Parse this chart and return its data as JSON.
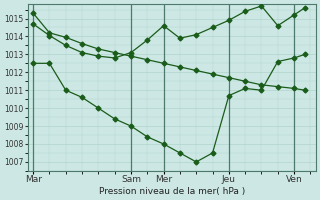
{
  "background_color": "#cde8e4",
  "grid_color": "#b0d4cc",
  "line_color": "#1a5c1a",
  "marker_color": "#1a5c1a",
  "xlabel": "Pression niveau de la mer( hPa )",
  "ylim": [
    1006.5,
    1015.8
  ],
  "yticks": [
    1007,
    1008,
    1009,
    1010,
    1011,
    1012,
    1013,
    1014,
    1015
  ],
  "xtick_labels": [
    "Mar",
    "Sam",
    "Mer",
    "Jeu",
    "Ven"
  ],
  "xtick_positions": [
    0,
    18,
    24,
    36,
    48
  ],
  "xlim": [
    -1,
    52
  ],
  "vlines": [
    0,
    18,
    24,
    36,
    48
  ],
  "line1_x": [
    0,
    3,
    6,
    9,
    12,
    15,
    18,
    21,
    24,
    27,
    30,
    33,
    36,
    39,
    42,
    45,
    48,
    50
  ],
  "line1_y": [
    1015.3,
    1014.2,
    1013.95,
    1013.6,
    1013.3,
    1013.1,
    1012.9,
    1012.7,
    1012.5,
    1012.3,
    1012.1,
    1011.9,
    1011.7,
    1011.5,
    1011.3,
    1011.2,
    1011.1,
    1011.0
  ],
  "line2_x": [
    0,
    3,
    6,
    9,
    12,
    15,
    18,
    21,
    24,
    27,
    30,
    33,
    36,
    39,
    42,
    45,
    48,
    50
  ],
  "line2_y": [
    1014.7,
    1014.05,
    1013.5,
    1013.1,
    1012.9,
    1012.8,
    1013.1,
    1013.8,
    1014.6,
    1013.9,
    1014.1,
    1014.5,
    1014.9,
    1015.4,
    1015.7,
    1014.6,
    1015.2,
    1015.6
  ],
  "line3_x": [
    0,
    3,
    6,
    9,
    12,
    15,
    18,
    21,
    24,
    27,
    30,
    33,
    36,
    39,
    42,
    45,
    48,
    50
  ],
  "line3_y": [
    1012.5,
    1012.5,
    1011.0,
    1010.6,
    1010.0,
    1009.4,
    1009.0,
    1008.4,
    1008.0,
    1007.5,
    1007.0,
    1007.5,
    1010.7,
    1011.1,
    1011.0,
    1012.6,
    1012.8,
    1013.0
  ]
}
